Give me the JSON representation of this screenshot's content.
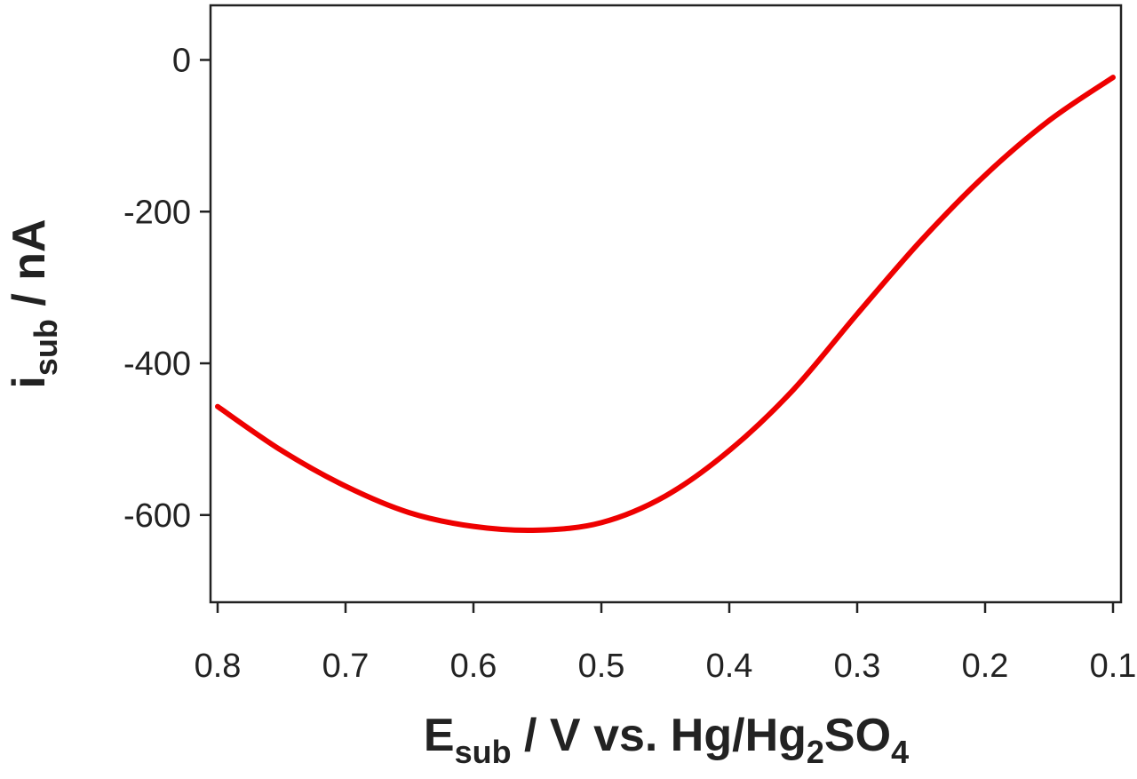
{
  "chart_data": {
    "type": "line",
    "title": "",
    "xlabel": {
      "main": "E",
      "sub": "sub",
      "rest_1": " / V vs. Hg/Hg",
      "sub_2": "2",
      "rest_2": "SO",
      "sub_4": "4"
    },
    "ylabel": {
      "main": "i",
      "sub": "sub",
      "rest": " / nA"
    },
    "xlim": [
      0.8,
      0.1
    ],
    "x_reversed": true,
    "ylim": [
      -715,
      72
    ],
    "x_ticks": [
      0.8,
      0.7,
      0.6,
      0.5,
      0.4,
      0.3,
      0.2,
      0.1
    ],
    "x_tick_labels": [
      "0.8",
      "0.7",
      "0.6",
      "0.5",
      "0.4",
      "0.3",
      "0.2",
      "0.1"
    ],
    "y_ticks": [
      0,
      -200,
      -400,
      -600
    ],
    "y_tick_labels": [
      "0",
      "-200",
      "-400",
      "-600"
    ],
    "grid": false,
    "legend": "none",
    "series": [
      {
        "color": "#ee0000",
        "x": [
          0.8,
          0.75,
          0.7,
          0.65,
          0.6,
          0.55,
          0.5,
          0.45,
          0.4,
          0.35,
          0.3,
          0.25,
          0.2,
          0.15,
          0.1
        ],
        "y": [
          -457,
          -515,
          -562,
          -597,
          -615,
          -620,
          -610,
          -575,
          -515,
          -435,
          -335,
          -238,
          -152,
          -80,
          -23
        ]
      }
    ]
  }
}
